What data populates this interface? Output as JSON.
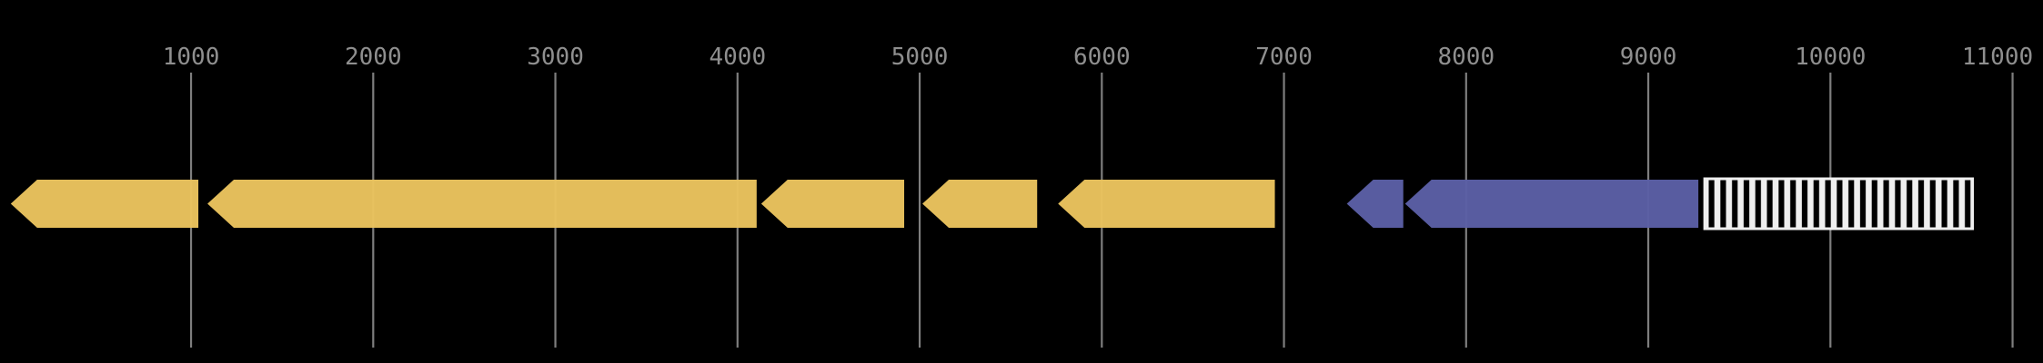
{
  "figure": {
    "background": "#000000",
    "description": "gene-map-track"
  },
  "chart_data": {
    "type": "gene_map",
    "title": "",
    "xlabel": "",
    "ylabel": "",
    "grid": "vertical-ticks-full-height",
    "legend": null,
    "axis": {
      "unit": "bp",
      "xlim": [
        -50,
        11170
      ],
      "tick_interval": 1000,
      "tick_values": [
        1000,
        2000,
        3000,
        4000,
        5000,
        6000,
        7000,
        8000,
        9000,
        10000,
        11000
      ],
      "tick_labels": [
        "1000",
        "2000",
        "3000",
        "4000",
        "5000",
        "6000",
        "7000",
        "8000",
        "9000",
        "10000",
        "11000"
      ],
      "tick_color": "#7e7e7e",
      "label_color": "#8f8f8f"
    },
    "colors": {
      "gene_gold": "#EAC35E",
      "gene_purple": "#5B5FA5",
      "hatch_stripe": "#EFEFEF",
      "hatch_background": "#000000"
    },
    "features": [
      {
        "id": "feature-1",
        "shape": "arrow",
        "strand": -1,
        "start": 10,
        "end": 1040,
        "color": "#EAC35E"
      },
      {
        "id": "feature-2",
        "shape": "arrow",
        "strand": -1,
        "start": 1090,
        "end": 4105,
        "color": "#EAC35E"
      },
      {
        "id": "feature-3",
        "shape": "arrow",
        "strand": -1,
        "start": 4130,
        "end": 4915,
        "color": "#EAC35E"
      },
      {
        "id": "feature-4",
        "shape": "arrow",
        "strand": -1,
        "start": 5015,
        "end": 5645,
        "color": "#EAC35E"
      },
      {
        "id": "feature-5",
        "shape": "arrow",
        "strand": -1,
        "start": 5760,
        "end": 6950,
        "color": "#EAC35E"
      },
      {
        "id": "feature-6",
        "shape": "arrow",
        "strand": -1,
        "start": 7345,
        "end": 7655,
        "color": "#5B5FA5"
      },
      {
        "id": "feature-7",
        "shape": "arrow",
        "strand": -1,
        "start": 7665,
        "end": 9275,
        "color": "#5B5FA5"
      },
      {
        "id": "feature-8",
        "shape": "hatched_box",
        "strand": 0,
        "start": 9310,
        "end": 10780,
        "stroke": "#EFEFEF",
        "stripe_color": "#EFEFEF",
        "background": "#000000"
      }
    ]
  }
}
